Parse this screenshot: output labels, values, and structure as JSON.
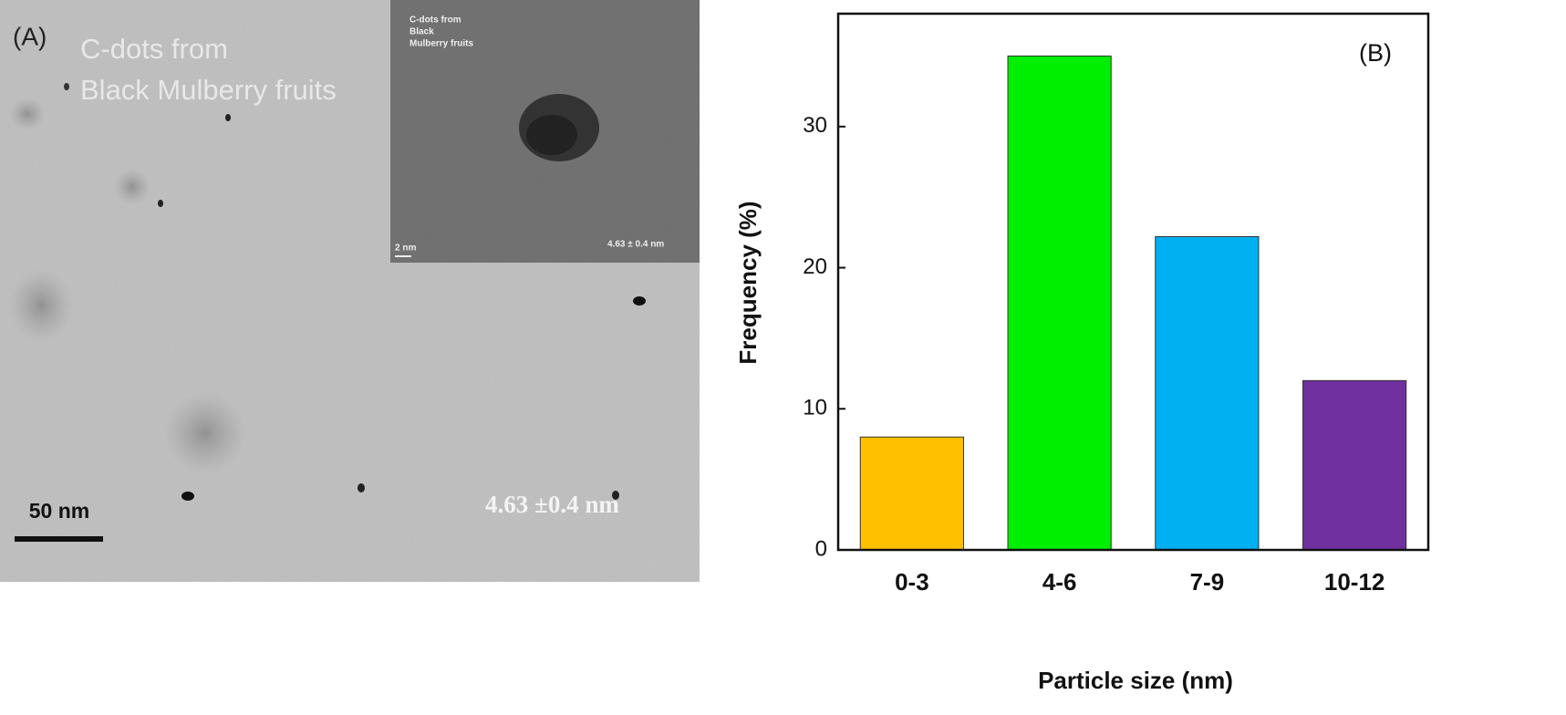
{
  "panel_a": {
    "label": "(A)",
    "caption_lines": [
      "C-dots from",
      "Black Mulberry fruits"
    ],
    "scale_bar": "50 nm",
    "size_label": "4.63 ±0.4 nm",
    "inset": {
      "caption_lines": [
        "C-dots from",
        "Black",
        "Mulberry fruits"
      ],
      "scale_bar": "2 nm",
      "size_label": "4.63 ± 0.4 nm"
    }
  },
  "chart_data": {
    "type": "bar",
    "panel_label": "(B)",
    "x_label": "Particle size (nm)",
    "y_label": "Frequency (%)",
    "categories": [
      "0-3",
      "4-6",
      "7-9",
      "10-12"
    ],
    "values": [
      8,
      35,
      22.2,
      12
    ],
    "colors": [
      "#ffc000",
      "#00ee00",
      "#00b0f0",
      "#7030a0"
    ],
    "ylim": [
      0,
      38
    ],
    "yticks": [
      0,
      10,
      20,
      30
    ]
  }
}
